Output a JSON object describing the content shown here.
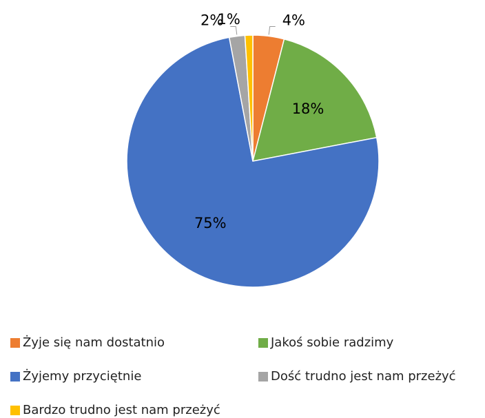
{
  "chart_data": {
    "type": "pie",
    "categories": [
      "Żyje się nam dostatnio",
      "Jakoś sobie radzimy",
      "Żyjemy przyciętnie",
      "Dość trudno jest nam przeżyć",
      "Bardzo trudno jest nam przeżyć"
    ],
    "values": [
      4,
      18,
      75,
      2,
      1
    ],
    "value_labels": [
      "4%",
      "18%",
      "75%",
      "2%",
      "1%"
    ],
    "colors": [
      "#ED7D31",
      "#70AD47",
      "#4472C4",
      "#A5A5A5",
      "#FFC000"
    ],
    "legend": "bottom"
  }
}
